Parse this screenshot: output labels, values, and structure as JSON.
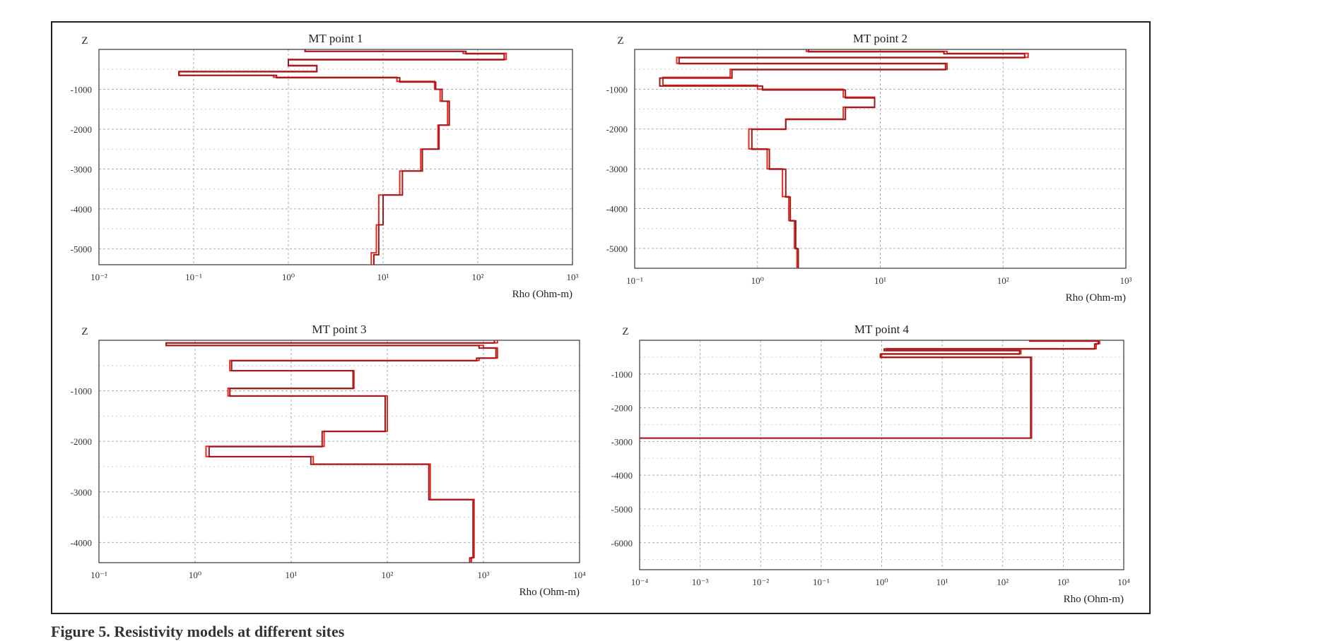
{
  "caption": "Figure 5. Resistivity models at different sites",
  "chart_data": [
    {
      "type": "line",
      "title": "MT point 1",
      "xlabel": "Rho (Ohm-m)",
      "ylabel": "Z",
      "xscale": "log",
      "xlim": [
        0.01,
        1000
      ],
      "ylim": [
        -5400,
        0
      ],
      "xticks": [
        "10⁻²",
        "10⁻¹",
        "10⁰",
        "10¹",
        "10²",
        "10³"
      ],
      "yticks": [
        "-1000",
        "-2000",
        "-3000",
        "-4000",
        "-5000"
      ],
      "ytick_values": [
        -1000,
        -2000,
        -3000,
        -4000,
        -5000
      ],
      "grid": true,
      "series": [
        {
          "color": "#e8291c",
          "rho": [
            1.5,
            70,
            200,
            1,
            2,
            0.07,
            0.7,
            14,
            35,
            40,
            48,
            38,
            25,
            15,
            9,
            8.5,
            7.5
          ],
          "depth": [
            -50,
            -100,
            -250,
            -400,
            -550,
            -650,
            -700,
            -800,
            -1000,
            -1300,
            -1900,
            -2500,
            -3050,
            -3650,
            -4400,
            -5100,
            -5400
          ]
        },
        {
          "color": "#9b1b1f",
          "rho": [
            1.5,
            75,
            190,
            1,
            2,
            0.07,
            0.75,
            15,
            36,
            42,
            50,
            39,
            26,
            16,
            10,
            9,
            8
          ],
          "depth": [
            -50,
            -110,
            -260,
            -410,
            -560,
            -650,
            -710,
            -820,
            -1000,
            -1300,
            -1900,
            -2500,
            -3050,
            -3650,
            -4400,
            -5150,
            -5400
          ]
        }
      ]
    },
    {
      "type": "line",
      "title": "MT point 2",
      "xlabel": "Rho (Ohm-m)",
      "ylabel": "Z",
      "xscale": "log",
      "xlim": [
        0.1,
        1000
      ],
      "ylim": [
        -5500,
        0
      ],
      "xticks": [
        "10⁻¹",
        "10⁰",
        "10¹",
        "10²",
        "10³"
      ],
      "yticks": [
        "-1000",
        "-2000",
        "-3000",
        "-4000",
        "-5000"
      ],
      "ytick_values": [
        -1000,
        -2000,
        -3000,
        -4000,
        -5000
      ],
      "grid": true,
      "series": [
        {
          "color": "#e8291c",
          "rho": [
            2.5,
            35,
            160,
            0.22,
            35,
            0.6,
            0.17,
            1,
            5,
            9,
            5,
            1.7,
            0.85,
            1.2,
            1.6,
            1.8,
            2.0,
            2.1
          ],
          "depth": [
            -50,
            -100,
            -200,
            -350,
            -500,
            -700,
            -900,
            -1000,
            -1200,
            -1450,
            -1750,
            -2000,
            -2500,
            -3000,
            -3700,
            -4300,
            -5000,
            -5500
          ]
        },
        {
          "color": "#9b1b1f",
          "rho": [
            2.6,
            33,
            150,
            0.23,
            34,
            0.62,
            0.16,
            1.1,
            5.2,
            9,
            5.2,
            1.7,
            0.9,
            1.25,
            1.7,
            1.85,
            2.05,
            2.15
          ],
          "depth": [
            -60,
            -110,
            -210,
            -360,
            -510,
            -720,
            -920,
            -1020,
            -1220,
            -1460,
            -1760,
            -2010,
            -2510,
            -3010,
            -3710,
            -4310,
            -5010,
            -5500
          ]
        }
      ]
    },
    {
      "type": "line",
      "title": "MT point 3",
      "xlabel": "Rho (Ohm-m)",
      "ylabel": "Z",
      "xscale": "log",
      "xlim": [
        0.1,
        10000
      ],
      "ylim": [
        -4400,
        0
      ],
      "xticks": [
        "10⁻¹",
        "10⁰",
        "10¹",
        "10²",
        "10³",
        "10⁴"
      ],
      "yticks": [
        "-1000",
        "-2000",
        "-3000",
        "-4000"
      ],
      "ytick_values": [
        -1000,
        -2000,
        -3000,
        -4000
      ],
      "grid": true,
      "series": [
        {
          "color": "#e8291c",
          "rho": [
            1400,
            0.5,
            1000,
            1400,
            900,
            2.3,
            45,
            2.2,
            100,
            22,
            1.3,
            17,
            280,
            800,
            750
          ],
          "depth": [
            -50,
            -100,
            -150,
            -350,
            -400,
            -600,
            -950,
            -1100,
            -1800,
            -2100,
            -2300,
            -2450,
            -3150,
            -4300,
            -4400
          ]
        },
        {
          "color": "#9b1b1f",
          "rho": [
            1300,
            0.5,
            900,
            1350,
            850,
            2.4,
            44,
            2.3,
            95,
            21,
            1.4,
            16,
            270,
            780,
            720
          ],
          "depth": [
            -55,
            -105,
            -155,
            -355,
            -405,
            -605,
            -955,
            -1105,
            -1805,
            -2105,
            -2305,
            -2455,
            -3155,
            -4305,
            -4400
          ]
        }
      ]
    },
    {
      "type": "line",
      "title": "MT point 4",
      "xlabel": "Rho (Ohm-m)",
      "ylabel": "Z",
      "xscale": "log",
      "xlim": [
        0.0001,
        10000
      ],
      "ylim": [
        -6800,
        0
      ],
      "xticks": [
        "10⁻⁴",
        "10⁻³",
        "10⁻²",
        "10⁻¹",
        "10⁰",
        "10¹",
        "10²",
        "10³",
        "10⁴"
      ],
      "yticks": [
        "-1000",
        "-2000",
        "-3000",
        "-4000",
        "-5000",
        "-6000"
      ],
      "ytick_values": [
        -1000,
        -2000,
        -3000,
        -4000,
        -5000,
        -6000
      ],
      "grid": true,
      "series": [
        {
          "color": "#e8291c",
          "rho": [
            300,
            4000,
            3500,
            1.2,
            200,
            1,
            300,
            0.0001
          ],
          "depth": [
            -20,
            -100,
            -250,
            -300,
            -400,
            -500,
            -2900,
            -2900
          ]
        },
        {
          "color": "#9b1b1f",
          "rho": [
            280,
            3800,
            3300,
            1.1,
            190,
            0.95,
            290,
            0.0001
          ],
          "depth": [
            -25,
            -110,
            -260,
            -310,
            -410,
            -510,
            -2900,
            -2900
          ]
        }
      ]
    }
  ]
}
